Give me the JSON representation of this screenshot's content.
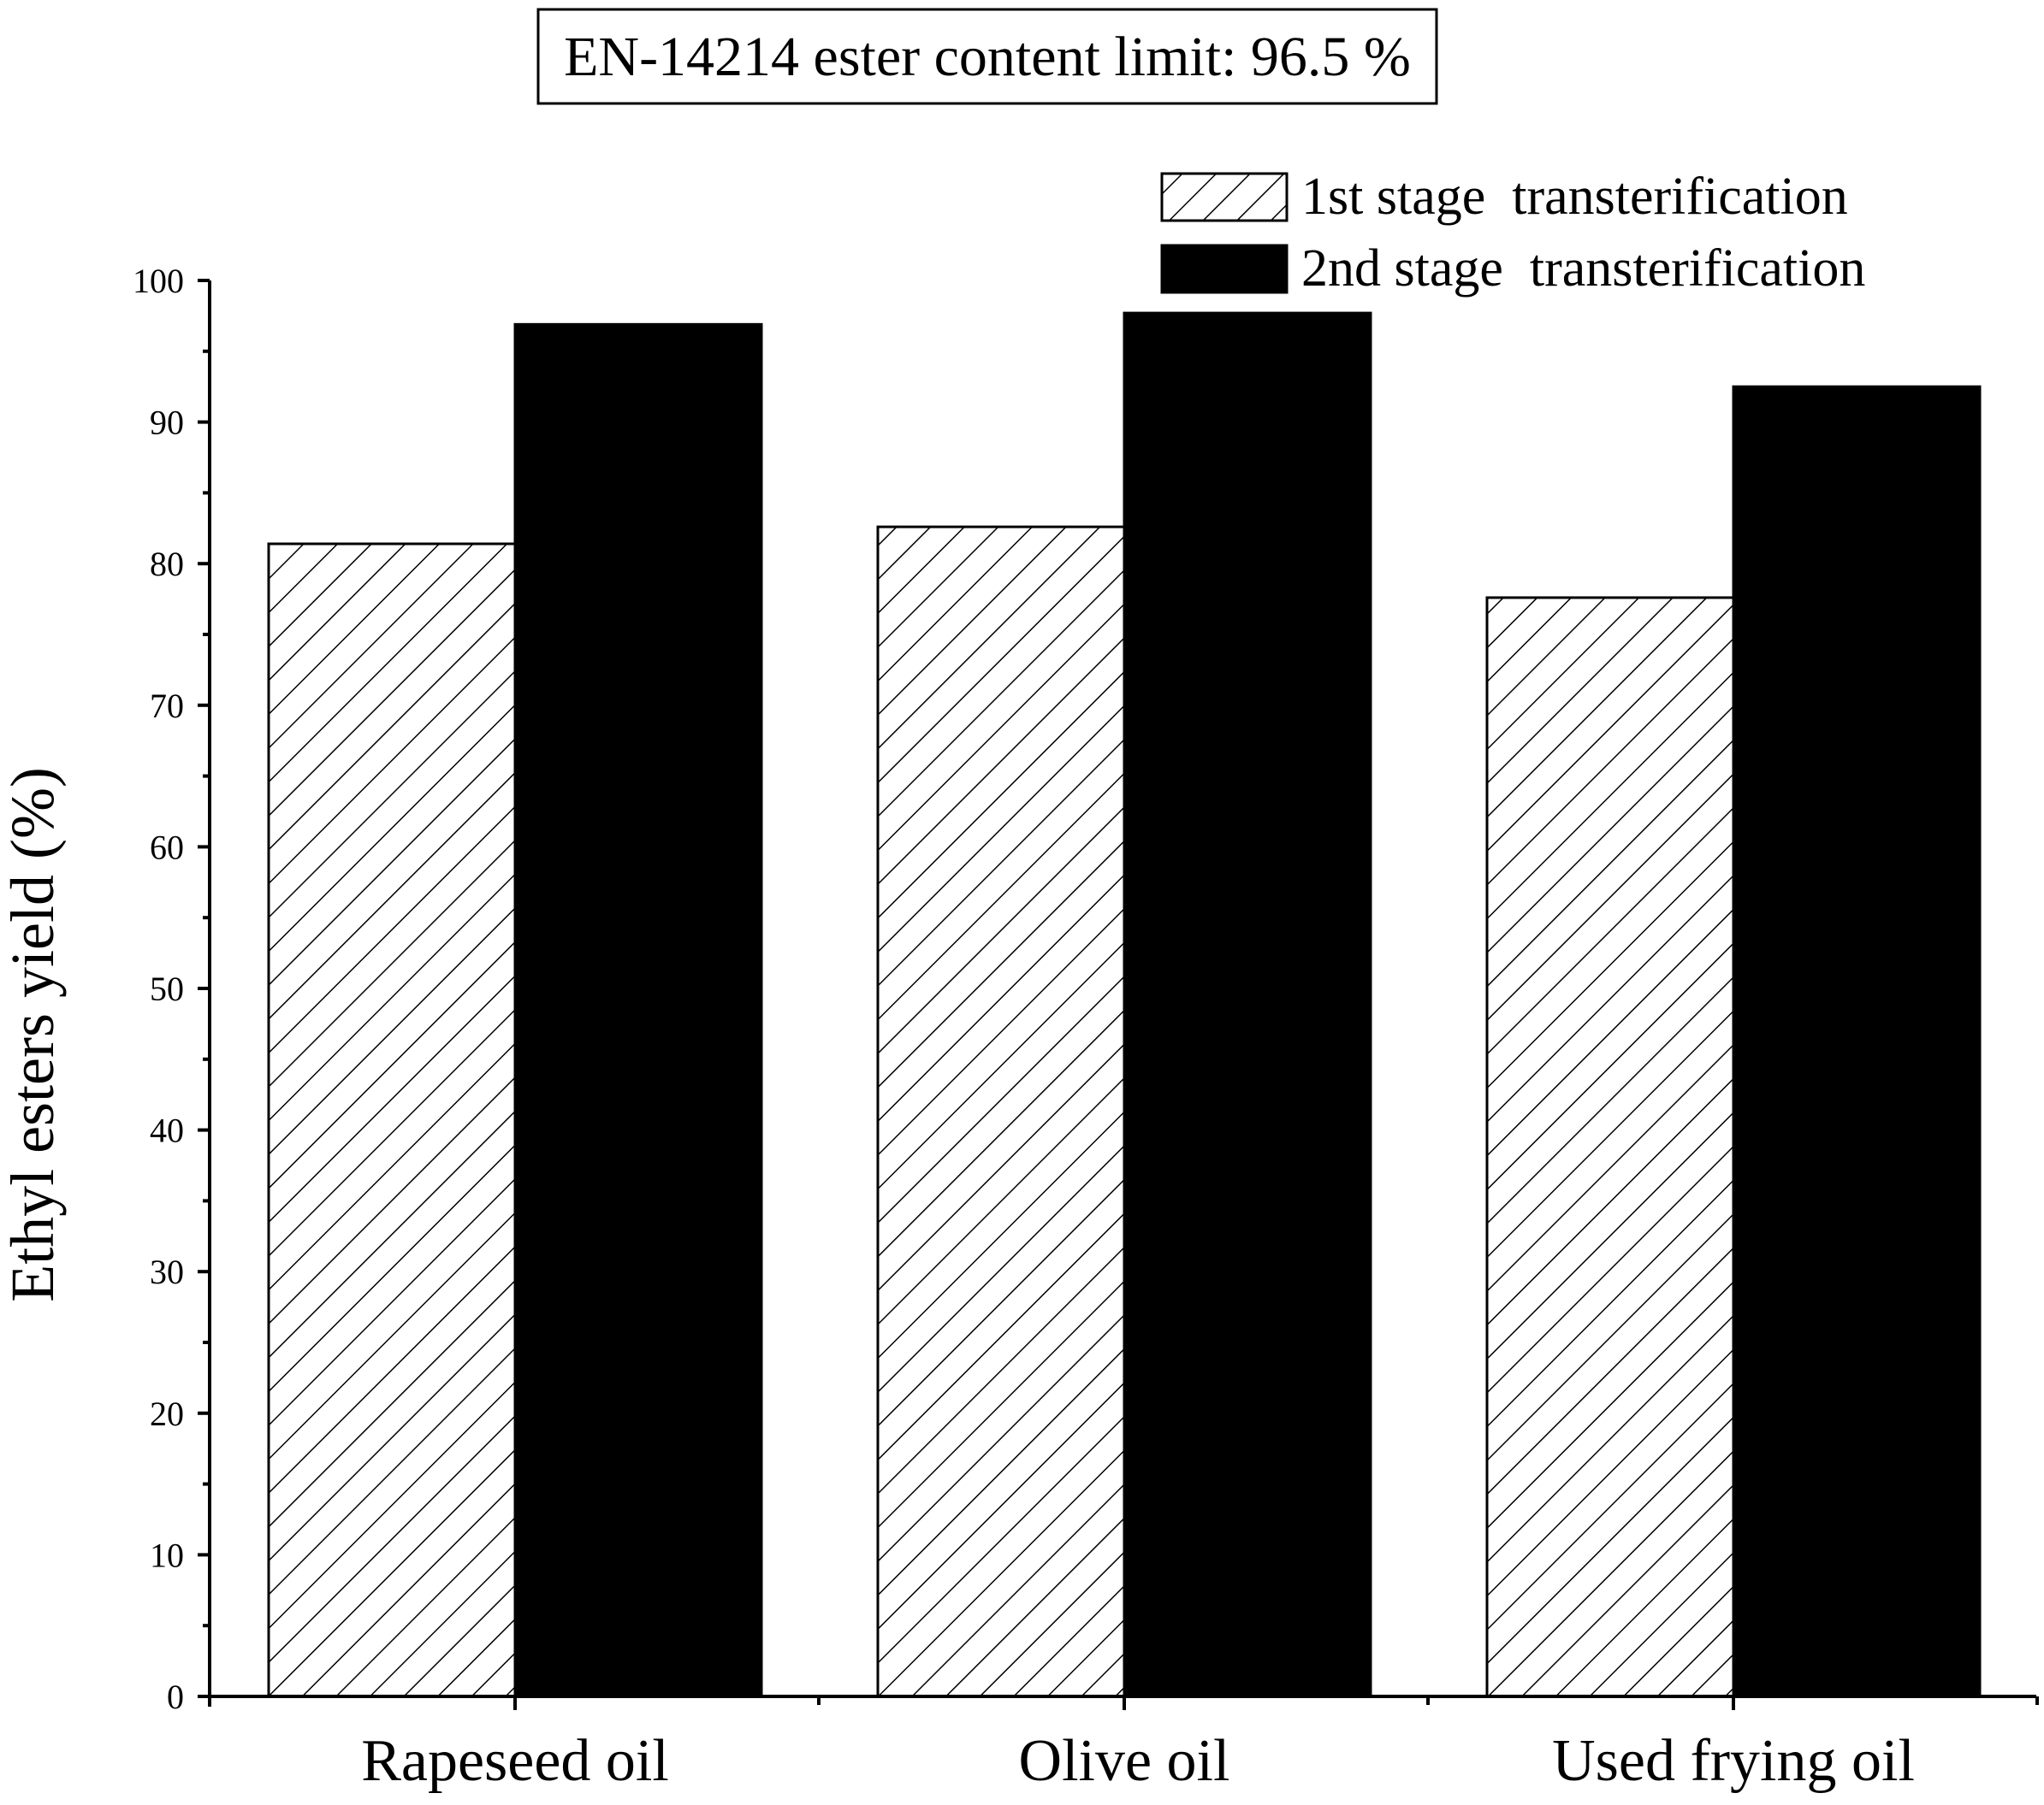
{
  "chart_data": {
    "type": "bar",
    "annotation": "EN-14214 ester content limit: 96.5 %",
    "categories": [
      "Rapeseed oil",
      "Olive oil",
      "Used frying oil"
    ],
    "series": [
      {
        "name": "1st stage  transterification",
        "pattern": "hatch",
        "values": [
          81.4,
          82.6,
          77.6
        ]
      },
      {
        "name": "2nd stage  transterification",
        "pattern": "solid",
        "values": [
          96.9,
          97.7,
          92.5
        ]
      }
    ],
    "xlabel": "",
    "ylabel": "Ethyl esters yield (%)",
    "ylim": [
      0,
      100
    ],
    "yticks": [
      0,
      10,
      20,
      30,
      40,
      50,
      60,
      70,
      80,
      90,
      100
    ],
    "legend_position": "top-right",
    "grid": false
  },
  "colors": {
    "bar_fill": "#000000",
    "hatch_background": "#ffffff",
    "axis": "#000000"
  }
}
